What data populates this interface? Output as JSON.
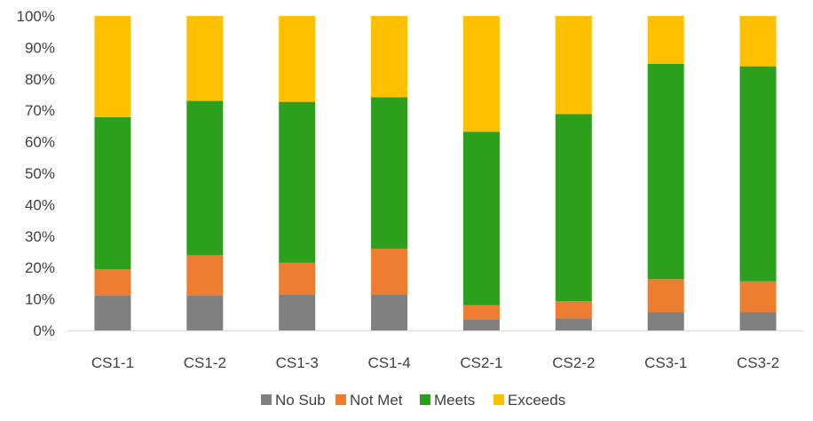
{
  "chart_data": {
    "type": "bar",
    "stacked": true,
    "percent_stacked": true,
    "categories": [
      "CS1-1",
      "CS1-2",
      "CS1-3",
      "CS1-4",
      "CS2-1",
      "CS2-2",
      "CS3-1",
      "CS3-2"
    ],
    "series": [
      {
        "name": "No Sub",
        "color": "#808080",
        "values": [
          11.2,
          11.2,
          11.5,
          11.5,
          3.5,
          3.8,
          5.8,
          5.8
        ]
      },
      {
        "name": "Not Met",
        "color": "#ED7D31",
        "values": [
          8.3,
          12.7,
          10.0,
          14.5,
          4.5,
          5.5,
          10.5,
          9.8
        ]
      },
      {
        "name": "Meets",
        "color": "#2CA01C",
        "values": [
          48.3,
          49.1,
          51.2,
          48.2,
          55.2,
          59.5,
          68.5,
          68.4
        ]
      },
      {
        "name": "Exceeds",
        "color": "#FFC000",
        "values": [
          32.2,
          27.0,
          27.3,
          25.8,
          36.8,
          31.2,
          15.2,
          16.0
        ]
      }
    ],
    "ylim": [
      0,
      100
    ],
    "ytick_values": [
      0,
      10,
      20,
      30,
      40,
      50,
      60,
      70,
      80,
      90,
      100
    ],
    "ytick_labels": [
      "0%",
      "10%",
      "20%",
      "30%",
      "40%",
      "50%",
      "60%",
      "70%",
      "80%",
      "90%",
      "100%"
    ],
    "grid": false,
    "legend_position": "bottom",
    "title": "",
    "xlabel": "",
    "ylabel": ""
  }
}
